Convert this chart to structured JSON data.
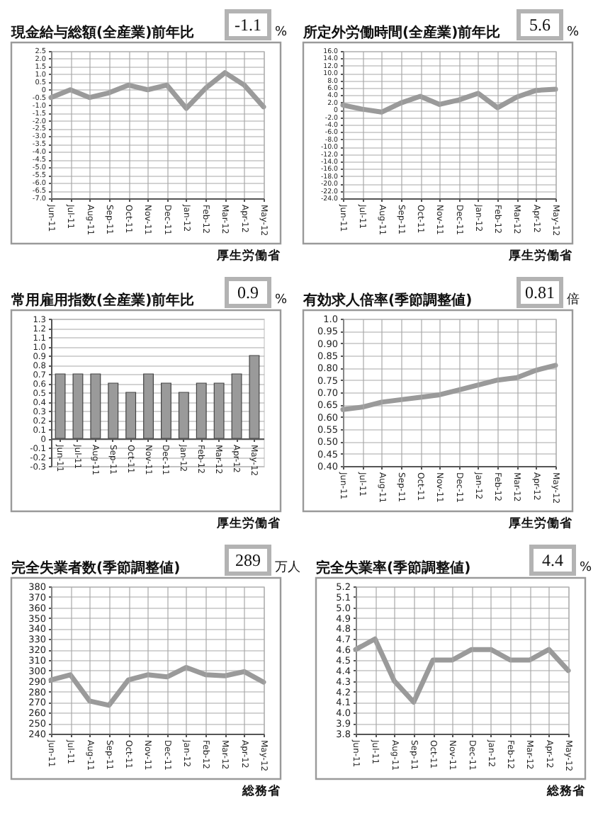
{
  "chart_data": [
    {
      "type": "line",
      "title": "現金給与総額(全産業)前年比",
      "categories": [
        "Jun-11",
        "Jul-11",
        "Aug-11",
        "Sep-11",
        "Oct-11",
        "Nov-11",
        "Dec-11",
        "Jan-12",
        "Feb-12",
        "Mar-12",
        "Apr-12",
        "May-12"
      ],
      "values": [
        -0.5,
        0.0,
        -0.5,
        -0.2,
        0.3,
        0.0,
        0.3,
        -1.2,
        0.1,
        1.1,
        0.3,
        -1.1
      ],
      "color": "#9a9a9a",
      "ylim": [
        -7,
        2.5
      ],
      "yticks": [
        2.5,
        {
          "value": 2,
          "label": "2.0"
        },
        1.5,
        {
          "value": 1,
          "label": "1.0"
        },
        0.5,
        0,
        -0.5,
        {
          "value": -1,
          "label": "-1.0"
        },
        -1.5,
        {
          "value": -2,
          "label": "-2.0"
        },
        -2.5,
        {
          "value": -3,
          "label": "-3.0"
        },
        -3.5,
        {
          "value": -4,
          "label": "-4.0"
        },
        -4.5,
        {
          "value": -5,
          "label": "-5.0"
        },
        -5.5,
        {
          "value": -6,
          "label": "-6.0"
        },
        -6.5,
        {
          "value": -7,
          "label": "-7.0"
        }
      ],
      "grid": true,
      "annotations": [
        "-1.1",
        "%",
        "厚生労働省"
      ]
    },
    {
      "type": "line",
      "title": "所定外労働時間(全産業)前年比",
      "categories": [
        "Jun-11",
        "Jul-11",
        "Aug-11",
        "Sep-11",
        "Oct-11",
        "Nov-11",
        "Dec-11",
        "Jan-12",
        "Feb-12",
        "Mar-12",
        "Apr-12",
        "May-12"
      ],
      "values": [
        1.3,
        0.2,
        -0.6,
        1.9,
        3.7,
        1.5,
        2.7,
        4.5,
        0.6,
        3.5,
        5.3,
        5.6
      ],
      "color": "#9a9a9a",
      "ylim": [
        -24,
        16
      ],
      "yticks": [
        {
          "value": 16,
          "label": "16.0"
        },
        {
          "value": 14,
          "label": "14.0"
        },
        {
          "value": 12,
          "label": "12.0"
        },
        {
          "value": 10,
          "label": "10.0"
        },
        {
          "value": 8,
          "label": "8.0"
        },
        {
          "value": 6,
          "label": "6.0"
        },
        {
          "value": 4,
          "label": "4.0"
        },
        {
          "value": 2,
          "label": "2.0"
        },
        0,
        {
          "value": -2,
          "label": "-2.0"
        },
        {
          "value": -4,
          "label": "-4.0"
        },
        {
          "value": -6,
          "label": "-6.0"
        },
        {
          "value": -8,
          "label": "-8.0"
        },
        {
          "value": -10,
          "label": "-10.0"
        },
        {
          "value": -12,
          "label": "-12.0"
        },
        {
          "value": -14,
          "label": "-14.0"
        },
        {
          "value": -16,
          "label": "-16.0"
        },
        {
          "value": -18,
          "label": "-18.0"
        },
        {
          "value": -20,
          "label": "-20.0"
        },
        {
          "value": -22,
          "label": "-22.0"
        },
        {
          "value": -24,
          "label": "-24.0"
        }
      ],
      "grid": true,
      "annotations": [
        "5.6",
        "%",
        "厚生労働省"
      ]
    },
    {
      "type": "bar",
      "title": "常用雇用指数(全産業)前年比",
      "categories": [
        "Jun-11",
        "Jul-11",
        "Aug-11",
        "Sep-11",
        "Oct-11",
        "Nov-11",
        "Dec-11",
        "Jan-12",
        "Feb-12",
        "Mar-12",
        "Apr-12",
        "May-12"
      ],
      "values": [
        0.7,
        0.7,
        0.7,
        0.6,
        0.5,
        0.7,
        0.6,
        0.5,
        0.6,
        0.6,
        0.7,
        0.9
      ],
      "color": "#9a9a9a",
      "ylim": [
        -0.3,
        1.3
      ],
      "yticks": [
        1.3,
        1.2,
        1.1,
        {
          "value": 1,
          "label": "1.0"
        },
        0.9,
        0.8,
        0.7,
        0.6,
        0.5,
        0.4,
        0.3,
        0.2,
        0.1,
        0,
        -0.1,
        -0.2,
        -0.3
      ],
      "grid": "y",
      "annotations": [
        "0.9",
        "%",
        "厚生労働省"
      ]
    },
    {
      "type": "line",
      "title": "有効求人倍率(季節調整値)",
      "categories": [
        "Jun-11",
        "Jul-11",
        "Aug-11",
        "Sep-11",
        "Oct-11",
        "Nov-11",
        "Dec-11",
        "Jan-12",
        "Feb-12",
        "Mar-12",
        "Apr-12",
        "May-12"
      ],
      "values": [
        0.63,
        0.64,
        0.66,
        0.67,
        0.68,
        0.69,
        0.71,
        0.73,
        0.75,
        0.76,
        0.79,
        0.81
      ],
      "color": "#9a9a9a",
      "ylim": [
        0.4,
        1.0
      ],
      "yticks": [
        {
          "value": 1,
          "label": "1.0"
        },
        0.95,
        {
          "value": 0.9,
          "label": "0.90"
        },
        0.85,
        {
          "value": 0.8,
          "label": "0.80"
        },
        0.75,
        {
          "value": 0.7,
          "label": "0.70"
        },
        0.65,
        {
          "value": 0.6,
          "label": "0.60"
        },
        0.55,
        {
          "value": 0.5,
          "label": "0.50"
        },
        0.45,
        {
          "value": 0.4,
          "label": "0.40"
        }
      ],
      "grid": true,
      "annotations": [
        "0.81",
        "倍",
        "厚生労働省"
      ]
    },
    {
      "type": "line",
      "title": "完全失業者数(季節調整値)",
      "categories": [
        "Jun-11",
        "Jul-11",
        "Aug-11",
        "Sep-11",
        "Oct-11",
        "Nov-11",
        "Dec-11",
        "Jan-12",
        "Feb-12",
        "Mar-12",
        "Apr-12",
        "May-12"
      ],
      "values": [
        291,
        296,
        271,
        267,
        291,
        296,
        294,
        303,
        296,
        295,
        299,
        289
      ],
      "color": "#9a9a9a",
      "ylim": [
        240,
        380
      ],
      "yticks": [
        380,
        370,
        360,
        350,
        340,
        330,
        320,
        310,
        300,
        290,
        280,
        270,
        260,
        250,
        240
      ],
      "grid": true,
      "annotations": [
        "289",
        "万人",
        "総務省"
      ]
    },
    {
      "type": "line",
      "title": "完全失業率(季節調整値)",
      "categories": [
        "Jun-11",
        "Jul-11",
        "Aug-11",
        "Sep-11",
        "Oct-11",
        "Nov-11",
        "Dec-11",
        "Jan-12",
        "Feb-12",
        "Mar-12",
        "Apr-12",
        "May-12"
      ],
      "values": [
        4.6,
        4.7,
        4.3,
        4.1,
        4.5,
        4.5,
        4.6,
        4.6,
        4.5,
        4.5,
        4.6,
        4.4
      ],
      "color": "#9a9a9a",
      "ylim": [
        3.8,
        5.2
      ],
      "yticks": [
        5.2,
        5.1,
        {
          "value": 5,
          "label": "5.0"
        },
        4.9,
        4.8,
        4.7,
        4.6,
        4.5,
        4.4,
        4.3,
        4.2,
        4.1,
        {
          "value": 4,
          "label": "4.0"
        },
        3.9,
        3.8
      ],
      "grid": true,
      "annotations": [
        "4.4",
        "%",
        "総務省"
      ]
    }
  ]
}
